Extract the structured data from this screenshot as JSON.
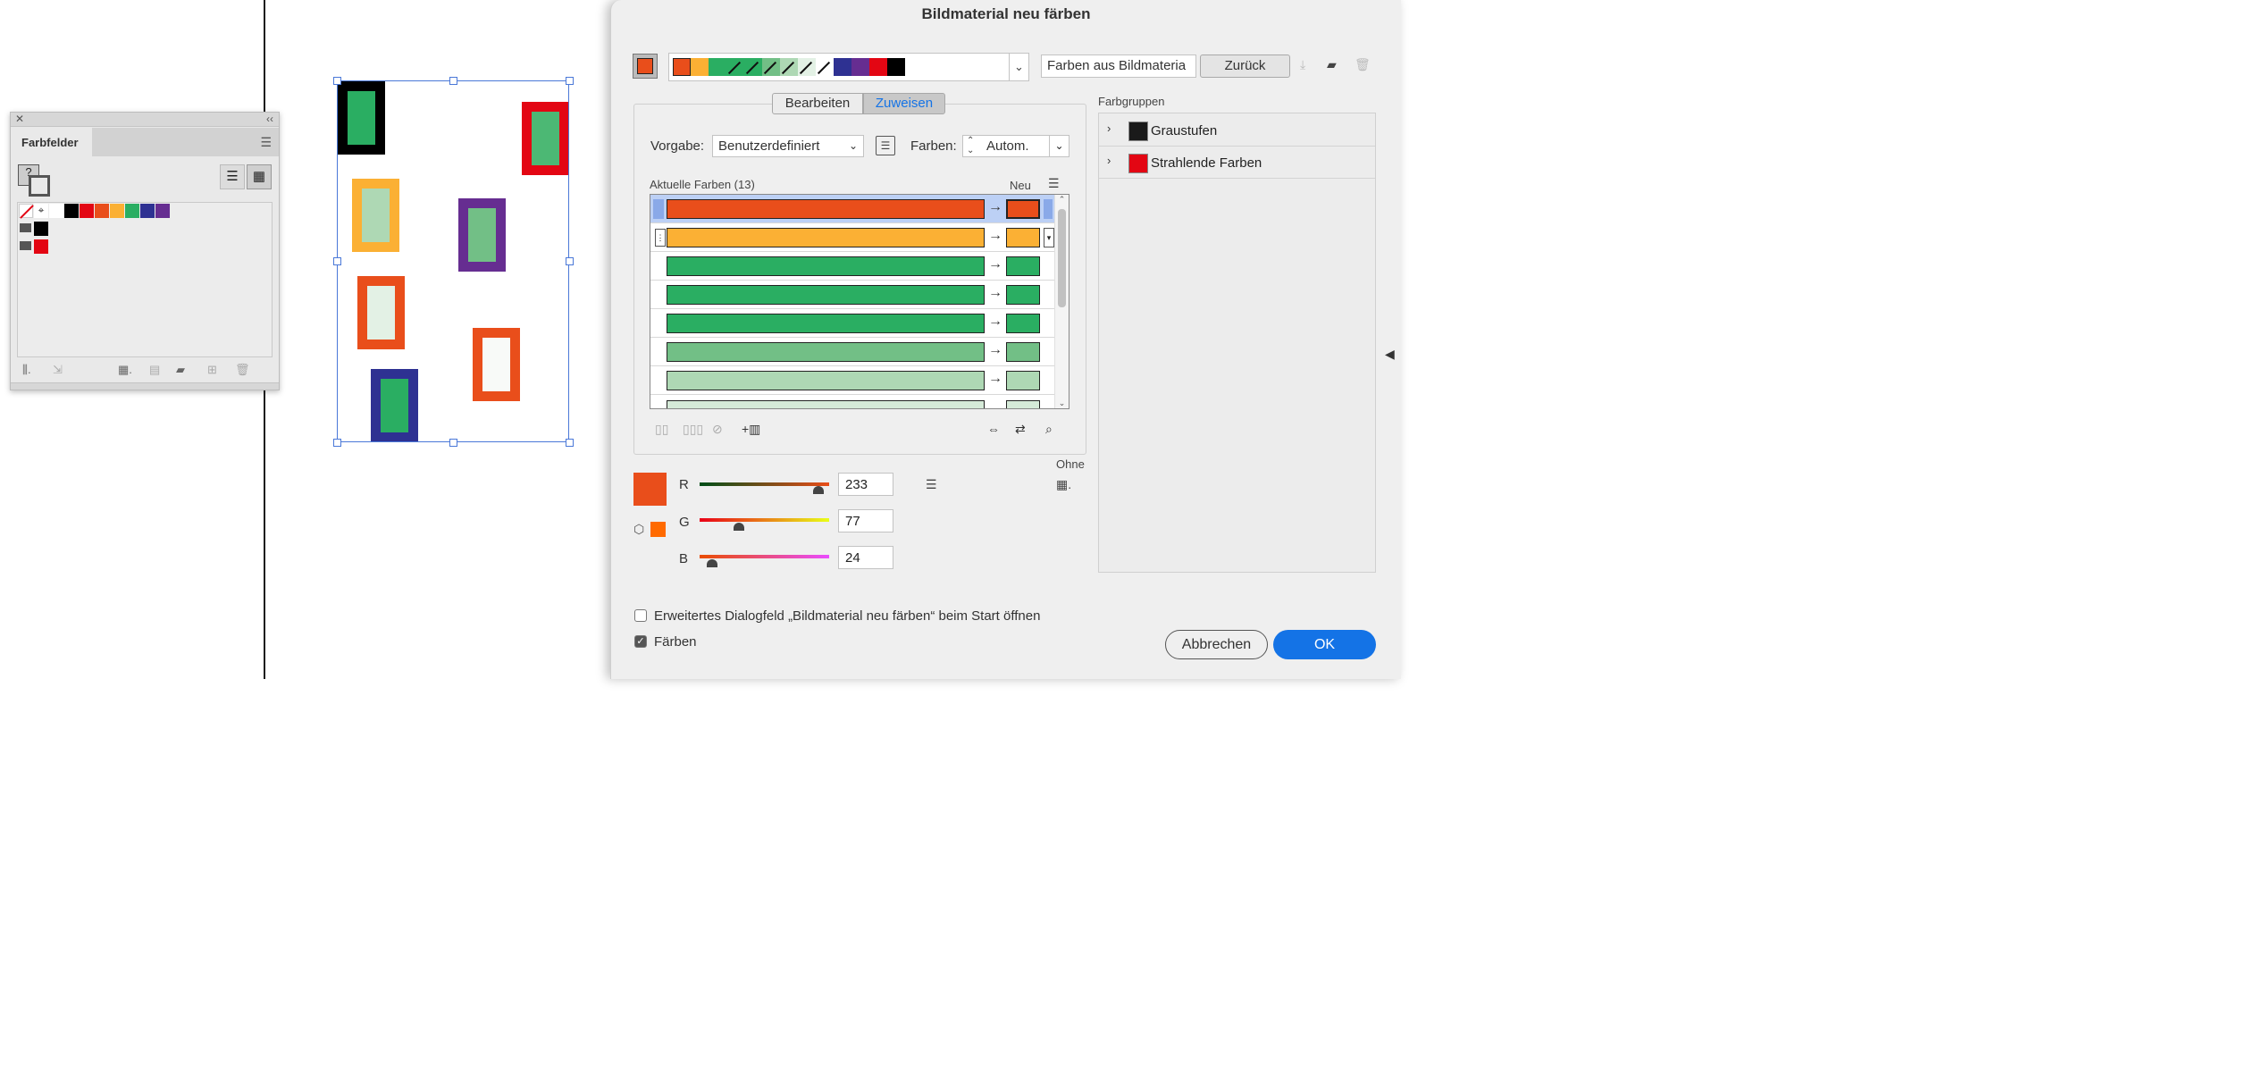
{
  "dialog": {
    "title": "Bildmaterial neu färben",
    "source_field": "Farben aus Bildmateria",
    "back_button": "Zurück",
    "tabs": [
      "Bearbeiten",
      "Zuweisen"
    ],
    "preset_label": "Vorgabe:",
    "preset_value": "Benutzerdefiniert",
    "colors_label": "Farben:",
    "colors_value": "Autom.",
    "current_colors_label": "Aktuelle Farben (13)",
    "new_label": "Neu",
    "rows": [
      {
        "color": "#e94e1b"
      },
      {
        "color": "#fbb034"
      },
      {
        "color": "#2aae62"
      },
      {
        "color": "#2aae62"
      },
      {
        "color": "#2aae62"
      },
      {
        "color": "#72bf86"
      },
      {
        "color": "#aed8b4"
      }
    ],
    "rgb": {
      "r_label": "R",
      "g_label": "G",
      "b_label": "B",
      "r": "233",
      "g": "77",
      "b": "24"
    },
    "none_label": "Ohne",
    "groups_label": "Farbgruppen",
    "groups": [
      {
        "name": "Graustufen",
        "color": "#1a1a1a"
      },
      {
        "name": "Strahlende Farben",
        "color": "#e30613"
      }
    ],
    "checkbox_advanced": "Erweitertes Dialogfeld „Bildmaterial neu färben“ beim Start öffnen",
    "checkbox_colors": "Färben",
    "cancel_button": "Abbrechen",
    "ok_button": "OK",
    "strip_colors": [
      "#e94e1b",
      "#fbb034",
      "#2aae62",
      "#2aae62",
      "#2aae62",
      "#72bf86",
      "#aed8b4",
      "#e3f1e5",
      "#ffffff",
      "#2e3192",
      "#662d91",
      "#e30613",
      "#000000"
    ]
  },
  "swatches": {
    "title": "Farbfelder",
    "colors": [
      "#000000",
      "#e30613",
      "#e94e1b",
      "#fbb034",
      "#2aae62",
      "#2e3192",
      "#662d91"
    ]
  },
  "accent": "#1473e6"
}
